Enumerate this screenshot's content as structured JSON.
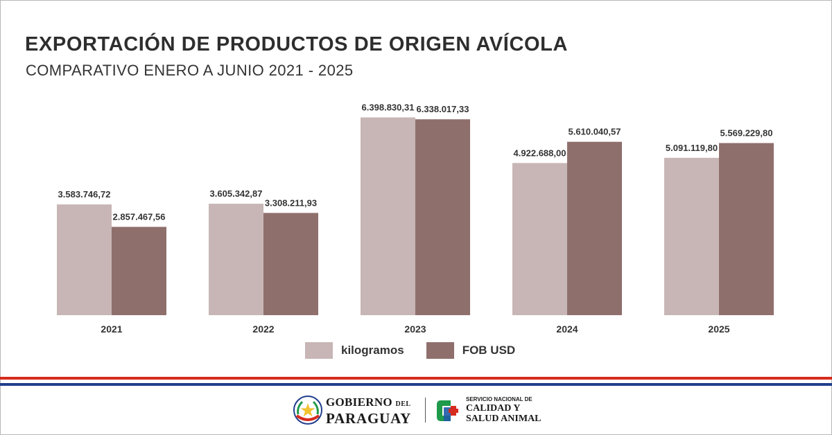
{
  "title": "EXPORTACIÓN DE PRODUCTOS DE ORIGEN AVÍCOLA",
  "subtitle": "COMPARATIVO ENERO A JUNIO 2021 - 2025",
  "chart_data": {
    "type": "bar",
    "title": "EXPORTACIÓN DE PRODUCTOS DE ORIGEN AVÍCOLA",
    "subtitle": "COMPARATIVO ENERO A JUNIO 2021 - 2025",
    "xlabel": "",
    "ylabel": "",
    "categories": [
      "2021",
      "2022",
      "2023",
      "2024",
      "2025"
    ],
    "series": [
      {
        "name": "kilogramos",
        "color": "#c7b6b5",
        "values": [
          3583746.72,
          3605342.87,
          6398830.31,
          4922688.0,
          5091119.8
        ],
        "labels": [
          "3.583.746,72",
          "3.605.342,87",
          "6.398.830,31",
          "4.922.688,00",
          "5.091.119,80"
        ]
      },
      {
        "name": "FOB USD",
        "color": "#8f6f6c",
        "values": [
          2857467.56,
          3308211.93,
          6338017.33,
          5610040.57,
          5569229.8
        ],
        "labels": [
          "2.857.467,56",
          "3.308.211,93",
          "6.338.017,33",
          "5.610.040,57",
          "5.569.229,80"
        ]
      }
    ],
    "ylim": [
      0,
      6500000
    ],
    "grid": false,
    "y_axis_visible": false,
    "legend_position": "bottom-center"
  },
  "legend": {
    "items": [
      {
        "label": "kilogramos",
        "color": "#c7b6b5"
      },
      {
        "label": "FOB USD",
        "color": "#8f6f6c"
      }
    ]
  },
  "footer": {
    "gobierno": "GOBIERNO",
    "del": "DEL",
    "paraguay": "PARAGUAY",
    "senacsa_line1": "SERVICIO NACIONAL DE",
    "senacsa_line2": "CALIDAD Y",
    "senacsa_line3": "SALUD ANIMAL",
    "flag_colors": {
      "red": "#d52b1e",
      "blue": "#1f3e8c"
    },
    "senacsa_colors": {
      "green": "#1f9a4b",
      "blue": "#1f5aa6",
      "red": "#d52b1e"
    },
    "icons": [
      "paraguay-seal-icon",
      "senacsa-logo-icon"
    ]
  }
}
